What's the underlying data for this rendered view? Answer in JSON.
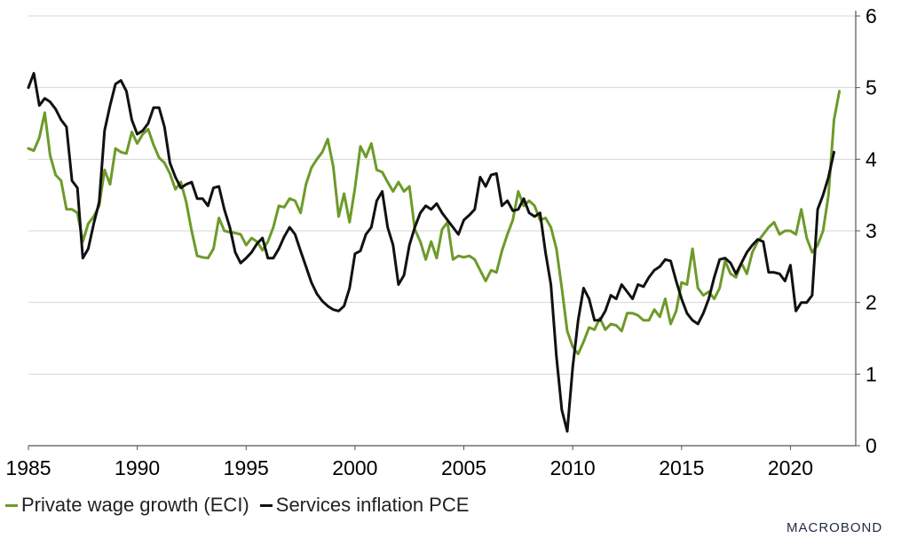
{
  "chart_data": {
    "type": "line",
    "title": "",
    "xlabel": "",
    "ylabel": "",
    "xlim": [
      1985,
      2023
    ],
    "ylim": [
      0,
      6
    ],
    "x_ticks": [
      1985,
      1990,
      1995,
      2000,
      2005,
      2010,
      2015,
      2020
    ],
    "y_ticks": [
      0,
      1,
      2,
      3,
      4,
      5,
      6
    ],
    "y_axis_side": "right",
    "grid": "horizontal",
    "legend_placement": "bottom-left",
    "series": [
      {
        "name": "Private wage growth (ECI)",
        "color": "#6d9a2a",
        "points": [
          [
            1985.0,
            4.15
          ],
          [
            1985.25,
            4.12
          ],
          [
            1985.5,
            4.3
          ],
          [
            1985.75,
            4.65
          ],
          [
            1986.0,
            4.05
          ],
          [
            1986.25,
            3.78
          ],
          [
            1986.5,
            3.7
          ],
          [
            1986.75,
            3.3
          ],
          [
            1987.0,
            3.3
          ],
          [
            1987.25,
            3.25
          ],
          [
            1987.5,
            2.85
          ],
          [
            1987.75,
            3.1
          ],
          [
            1988.0,
            3.2
          ],
          [
            1988.25,
            3.35
          ],
          [
            1988.5,
            3.85
          ],
          [
            1988.75,
            3.65
          ],
          [
            1989.0,
            4.15
          ],
          [
            1989.25,
            4.1
          ],
          [
            1989.5,
            4.08
          ],
          [
            1989.75,
            4.38
          ],
          [
            1990.0,
            4.22
          ],
          [
            1990.25,
            4.35
          ],
          [
            1990.5,
            4.42
          ],
          [
            1990.75,
            4.2
          ],
          [
            1991.0,
            4.02
          ],
          [
            1991.25,
            3.95
          ],
          [
            1991.5,
            3.8
          ],
          [
            1991.75,
            3.58
          ],
          [
            1992.0,
            3.68
          ],
          [
            1992.25,
            3.4
          ],
          [
            1992.5,
            3.0
          ],
          [
            1992.75,
            2.65
          ],
          [
            1993.0,
            2.63
          ],
          [
            1993.25,
            2.62
          ],
          [
            1993.5,
            2.75
          ],
          [
            1993.75,
            3.18
          ],
          [
            1994.0,
            3.0
          ],
          [
            1994.25,
            2.98
          ],
          [
            1994.5,
            2.97
          ],
          [
            1994.75,
            2.95
          ],
          [
            1995.0,
            2.8
          ],
          [
            1995.25,
            2.9
          ],
          [
            1995.5,
            2.85
          ],
          [
            1995.75,
            2.73
          ],
          [
            1996.0,
            2.85
          ],
          [
            1996.25,
            3.05
          ],
          [
            1996.5,
            3.35
          ],
          [
            1996.75,
            3.33
          ],
          [
            1997.0,
            3.45
          ],
          [
            1997.25,
            3.42
          ],
          [
            1997.5,
            3.25
          ],
          [
            1997.75,
            3.65
          ],
          [
            1998.0,
            3.88
          ],
          [
            1998.25,
            4.0
          ],
          [
            1998.5,
            4.1
          ],
          [
            1998.75,
            4.28
          ],
          [
            1999.0,
            3.9
          ],
          [
            1999.25,
            3.2
          ],
          [
            1999.5,
            3.52
          ],
          [
            1999.75,
            3.12
          ],
          [
            2000.0,
            3.6
          ],
          [
            2000.25,
            4.18
          ],
          [
            2000.5,
            4.03
          ],
          [
            2000.75,
            4.22
          ],
          [
            2001.0,
            3.85
          ],
          [
            2001.25,
            3.82
          ],
          [
            2001.5,
            3.68
          ],
          [
            2001.75,
            3.55
          ],
          [
            2002.0,
            3.68
          ],
          [
            2002.25,
            3.55
          ],
          [
            2002.5,
            3.62
          ],
          [
            2002.75,
            3.02
          ],
          [
            2003.0,
            2.85
          ],
          [
            2003.25,
            2.6
          ],
          [
            2003.5,
            2.85
          ],
          [
            2003.75,
            2.62
          ],
          [
            2004.0,
            3.02
          ],
          [
            2004.25,
            3.12
          ],
          [
            2004.5,
            2.6
          ],
          [
            2004.75,
            2.65
          ],
          [
            2005.0,
            2.63
          ],
          [
            2005.25,
            2.65
          ],
          [
            2005.5,
            2.6
          ],
          [
            2005.75,
            2.45
          ],
          [
            2006.0,
            2.3
          ],
          [
            2006.25,
            2.45
          ],
          [
            2006.5,
            2.42
          ],
          [
            2006.75,
            2.72
          ],
          [
            2007.0,
            2.95
          ],
          [
            2007.25,
            3.15
          ],
          [
            2007.5,
            3.55
          ],
          [
            2007.75,
            3.35
          ],
          [
            2008.0,
            3.42
          ],
          [
            2008.25,
            3.35
          ],
          [
            2008.5,
            3.15
          ],
          [
            2008.75,
            3.18
          ],
          [
            2009.0,
            3.05
          ],
          [
            2009.25,
            2.75
          ],
          [
            2009.5,
            2.2
          ],
          [
            2009.75,
            1.6
          ],
          [
            2010.0,
            1.38
          ],
          [
            2010.25,
            1.28
          ],
          [
            2010.5,
            1.45
          ],
          [
            2010.75,
            1.65
          ],
          [
            2011.0,
            1.62
          ],
          [
            2011.25,
            1.78
          ],
          [
            2011.5,
            1.62
          ],
          [
            2011.75,
            1.7
          ],
          [
            2012.0,
            1.68
          ],
          [
            2012.25,
            1.6
          ],
          [
            2012.5,
            1.85
          ],
          [
            2012.75,
            1.85
          ],
          [
            2013.0,
            1.82
          ],
          [
            2013.25,
            1.75
          ],
          [
            2013.5,
            1.75
          ],
          [
            2013.75,
            1.9
          ],
          [
            2014.0,
            1.8
          ],
          [
            2014.25,
            2.05
          ],
          [
            2014.5,
            1.7
          ],
          [
            2014.75,
            1.88
          ],
          [
            2015.0,
            2.28
          ],
          [
            2015.25,
            2.25
          ],
          [
            2015.5,
            2.75
          ],
          [
            2015.75,
            2.2
          ],
          [
            2016.0,
            2.1
          ],
          [
            2016.25,
            2.15
          ],
          [
            2016.5,
            2.05
          ],
          [
            2016.75,
            2.2
          ],
          [
            2017.0,
            2.58
          ],
          [
            2017.25,
            2.4
          ],
          [
            2017.5,
            2.35
          ],
          [
            2017.75,
            2.55
          ],
          [
            2018.0,
            2.4
          ],
          [
            2018.25,
            2.7
          ],
          [
            2018.5,
            2.85
          ],
          [
            2018.75,
            2.95
          ],
          [
            2019.0,
            3.05
          ],
          [
            2019.25,
            3.12
          ],
          [
            2019.5,
            2.95
          ],
          [
            2019.75,
            3.0
          ],
          [
            2020.0,
            3.0
          ],
          [
            2020.25,
            2.95
          ],
          [
            2020.5,
            3.3
          ],
          [
            2020.75,
            2.9
          ],
          [
            2021.0,
            2.7
          ],
          [
            2021.25,
            2.8
          ],
          [
            2021.5,
            3.0
          ],
          [
            2021.75,
            3.5
          ],
          [
            2022.0,
            4.55
          ],
          [
            2022.25,
            4.95
          ]
        ]
      },
      {
        "name": "Services inflation PCE",
        "color": "#111111",
        "points": [
          [
            1985.0,
            5.0
          ],
          [
            1985.25,
            5.2
          ],
          [
            1985.5,
            4.75
          ],
          [
            1985.75,
            4.85
          ],
          [
            1986.0,
            4.8
          ],
          [
            1986.25,
            4.7
          ],
          [
            1986.5,
            4.55
          ],
          [
            1986.75,
            4.45
          ],
          [
            1987.0,
            3.7
          ],
          [
            1987.25,
            3.6
          ],
          [
            1987.5,
            2.62
          ],
          [
            1987.75,
            2.75
          ],
          [
            1988.0,
            3.1
          ],
          [
            1988.25,
            3.4
          ],
          [
            1988.5,
            4.4
          ],
          [
            1988.75,
            4.75
          ],
          [
            1989.0,
            5.05
          ],
          [
            1989.25,
            5.1
          ],
          [
            1989.5,
            4.95
          ],
          [
            1989.75,
            4.55
          ],
          [
            1990.0,
            4.35
          ],
          [
            1990.25,
            4.4
          ],
          [
            1990.5,
            4.5
          ],
          [
            1990.75,
            4.72
          ],
          [
            1991.0,
            4.72
          ],
          [
            1991.25,
            4.45
          ],
          [
            1991.5,
            3.95
          ],
          [
            1991.75,
            3.75
          ],
          [
            1992.0,
            3.6
          ],
          [
            1992.25,
            3.65
          ],
          [
            1992.5,
            3.68
          ],
          [
            1992.75,
            3.45
          ],
          [
            1993.0,
            3.45
          ],
          [
            1993.25,
            3.35
          ],
          [
            1993.5,
            3.6
          ],
          [
            1993.75,
            3.62
          ],
          [
            1994.0,
            3.3
          ],
          [
            1994.25,
            3.05
          ],
          [
            1994.5,
            2.7
          ],
          [
            1994.75,
            2.55
          ],
          [
            1995.0,
            2.62
          ],
          [
            1995.25,
            2.7
          ],
          [
            1995.5,
            2.82
          ],
          [
            1995.75,
            2.9
          ],
          [
            1996.0,
            2.62
          ],
          [
            1996.25,
            2.62
          ],
          [
            1996.5,
            2.75
          ],
          [
            1996.75,
            2.92
          ],
          [
            1997.0,
            3.05
          ],
          [
            1997.25,
            2.95
          ],
          [
            1997.5,
            2.72
          ],
          [
            1997.75,
            2.5
          ],
          [
            1998.0,
            2.28
          ],
          [
            1998.25,
            2.12
          ],
          [
            1998.5,
            2.02
          ],
          [
            1998.75,
            1.95
          ],
          [
            1999.0,
            1.9
          ],
          [
            1999.25,
            1.88
          ],
          [
            1999.5,
            1.95
          ],
          [
            1999.75,
            2.2
          ],
          [
            2000.0,
            2.68
          ],
          [
            2000.25,
            2.72
          ],
          [
            2000.5,
            2.95
          ],
          [
            2000.75,
            3.05
          ],
          [
            2001.0,
            3.42
          ],
          [
            2001.25,
            3.55
          ],
          [
            2001.5,
            3.05
          ],
          [
            2001.75,
            2.8
          ],
          [
            2002.0,
            2.25
          ],
          [
            2002.25,
            2.38
          ],
          [
            2002.5,
            2.8
          ],
          [
            2002.75,
            3.05
          ],
          [
            2003.0,
            3.25
          ],
          [
            2003.25,
            3.35
          ],
          [
            2003.5,
            3.3
          ],
          [
            2003.75,
            3.38
          ],
          [
            2004.0,
            3.25
          ],
          [
            2004.25,
            3.15
          ],
          [
            2004.5,
            3.05
          ],
          [
            2004.75,
            2.95
          ],
          [
            2005.0,
            3.15
          ],
          [
            2005.25,
            3.22
          ],
          [
            2005.5,
            3.3
          ],
          [
            2005.75,
            3.75
          ],
          [
            2006.0,
            3.62
          ],
          [
            2006.25,
            3.78
          ],
          [
            2006.5,
            3.8
          ],
          [
            2006.75,
            3.35
          ],
          [
            2007.0,
            3.42
          ],
          [
            2007.25,
            3.28
          ],
          [
            2007.5,
            3.3
          ],
          [
            2007.75,
            3.45
          ],
          [
            2008.0,
            3.25
          ],
          [
            2008.25,
            3.2
          ],
          [
            2008.5,
            3.25
          ],
          [
            2008.75,
            2.7
          ],
          [
            2009.0,
            2.25
          ],
          [
            2009.25,
            1.25
          ],
          [
            2009.5,
            0.5
          ],
          [
            2009.75,
            0.2
          ],
          [
            2010.0,
            1.1
          ],
          [
            2010.25,
            1.75
          ],
          [
            2010.5,
            2.2
          ],
          [
            2010.75,
            2.05
          ],
          [
            2011.0,
            1.75
          ],
          [
            2011.25,
            1.75
          ],
          [
            2011.5,
            1.88
          ],
          [
            2011.75,
            2.1
          ],
          [
            2012.0,
            2.05
          ],
          [
            2012.25,
            2.25
          ],
          [
            2012.5,
            2.15
          ],
          [
            2012.75,
            2.05
          ],
          [
            2013.0,
            2.25
          ],
          [
            2013.25,
            2.22
          ],
          [
            2013.5,
            2.35
          ],
          [
            2013.75,
            2.45
          ],
          [
            2014.0,
            2.5
          ],
          [
            2014.25,
            2.6
          ],
          [
            2014.5,
            2.58
          ],
          [
            2014.75,
            2.3
          ],
          [
            2015.0,
            2.05
          ],
          [
            2015.25,
            1.85
          ],
          [
            2015.5,
            1.75
          ],
          [
            2015.75,
            1.7
          ],
          [
            2016.0,
            1.85
          ],
          [
            2016.25,
            2.05
          ],
          [
            2016.5,
            2.35
          ],
          [
            2016.75,
            2.6
          ],
          [
            2017.0,
            2.62
          ],
          [
            2017.25,
            2.55
          ],
          [
            2017.5,
            2.4
          ],
          [
            2017.75,
            2.55
          ],
          [
            2018.0,
            2.7
          ],
          [
            2018.25,
            2.8
          ],
          [
            2018.5,
            2.88
          ],
          [
            2018.75,
            2.85
          ],
          [
            2019.0,
            2.42
          ],
          [
            2019.25,
            2.42
          ],
          [
            2019.5,
            2.4
          ],
          [
            2019.75,
            2.3
          ],
          [
            2020.0,
            2.52
          ],
          [
            2020.25,
            1.88
          ],
          [
            2020.5,
            2.0
          ],
          [
            2020.75,
            2.0
          ],
          [
            2021.0,
            2.1
          ],
          [
            2021.25,
            3.3
          ],
          [
            2021.5,
            3.5
          ],
          [
            2021.75,
            3.75
          ],
          [
            2022.0,
            4.1
          ]
        ]
      }
    ]
  },
  "legend": {
    "items": [
      {
        "label": "Private wage growth (ECI)",
        "color": "#6d9a2a"
      },
      {
        "label": "Services inflation PCE",
        "color": "#111111"
      }
    ]
  },
  "branding": {
    "logo_text": "MACROBOND"
  }
}
